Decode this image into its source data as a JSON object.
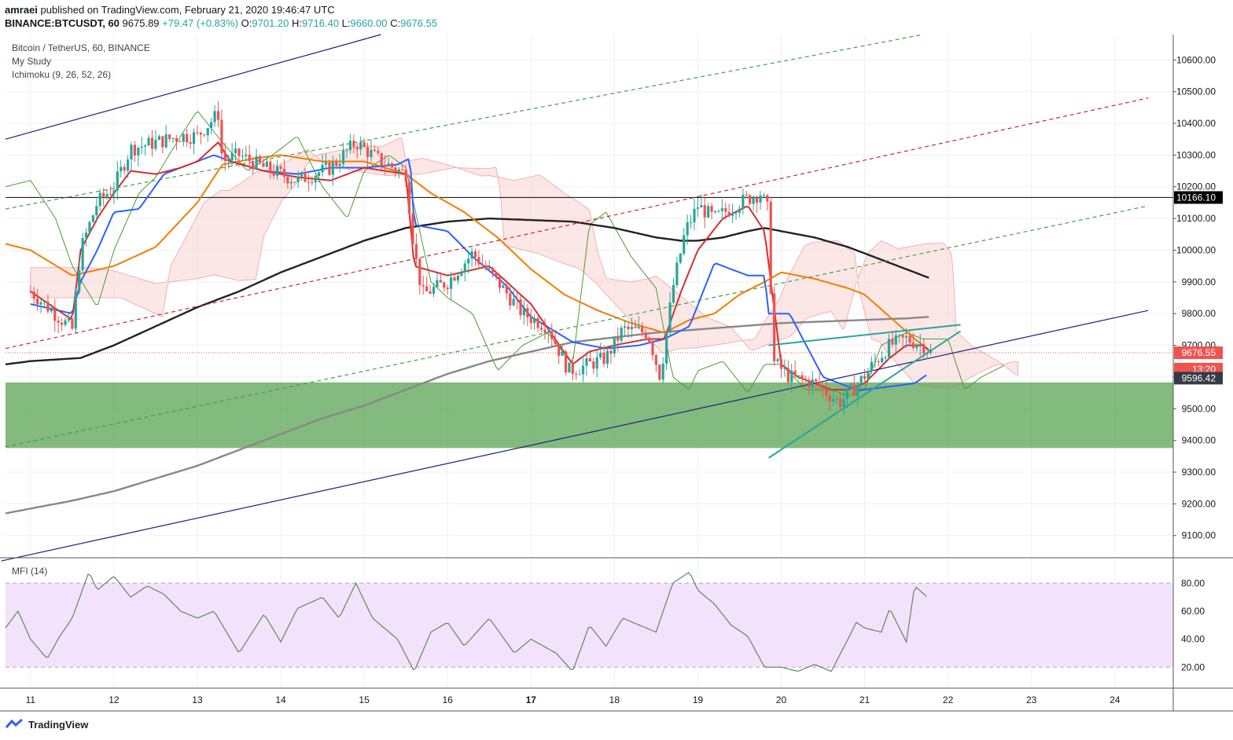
{
  "header": {
    "publisher": "amraei",
    "published_text": "published on TradingView.com, February 21, 2020 19:46:47 UTC",
    "symbol": "BINANCE:BTCUSDT, 60",
    "last": "9675.89",
    "change": "+79.47 (+0.83%)",
    "o_label": "O:",
    "o": "9701.20",
    "h_label": "H:",
    "h": "9716.40",
    "l_label": "L:",
    "l": "9660.00",
    "c_label": "C:",
    "c": "9676.55"
  },
  "legend": {
    "title": "Bitcoin / TetherUS, 60, BINANCE",
    "study1": "My Study",
    "study2": "Ichimoku (9, 26, 52, 26)"
  },
  "mfi_label": "MFI (14)",
  "footer": {
    "brand": "TradingView"
  },
  "colors": {
    "up": "#26a69a",
    "down": "#ef5350",
    "support_zone": "#5aa351",
    "tenkan": "#2962ff",
    "kijun": "#d32f2f",
    "lagging": "#4e9a2f",
    "ema50": "#f57c00",
    "sma100": "#222222",
    "sma200": "#888888",
    "channel": "#1a237e",
    "mfi_band": "#f3e2fb"
  },
  "chart_data": [
    {
      "type": "line",
      "title": "Bitcoin / TetherUS, 60, BINANCE",
      "x_ticks": [
        "11",
        "12",
        "13",
        "14",
        "15",
        "16",
        "17",
        "18",
        "19",
        "20",
        "21",
        "22",
        "23",
        "24"
      ],
      "ylim": [
        9030,
        10680
      ],
      "y_ticks": [
        "10600.00",
        "10500.00",
        "10400.00",
        "10300.00",
        "10200.00",
        "10100.00",
        "10000.00",
        "9900.00",
        "9800.00",
        "9700.00",
        "9600.00",
        "9500.00",
        "9400.00",
        "9300.00",
        "9200.00",
        "9100.00"
      ],
      "price_labels": [
        {
          "text": "10166.10",
          "value": 10166.1,
          "color": "#000000"
        },
        {
          "text": "9676.55",
          "value": 9676.55,
          "color": "#ef5350"
        },
        {
          "text": "13:20",
          "value": 9625,
          "color": "#ef5350"
        },
        {
          "text": "9596.42",
          "value": 9596.42,
          "color": "#363a45"
        }
      ],
      "horizontal_line": 10166.1,
      "support_zone": [
        9376,
        9583
      ],
      "series": [
        {
          "id": "price",
          "x": [
            11.0,
            11.5,
            11.6,
            11.8,
            12.0,
            12.2,
            12.5,
            12.8,
            13.0,
            13.25,
            13.3,
            13.5,
            13.8,
            14.2,
            14.6,
            14.9,
            15.2,
            15.5,
            15.6,
            15.7,
            16.0,
            16.3,
            16.6,
            16.9,
            17.2,
            17.45,
            17.6,
            17.9,
            18.1,
            18.4,
            18.55,
            18.7,
            18.85,
            19.0,
            19.2,
            19.5,
            19.75,
            19.85,
            19.9,
            20.1,
            20.4,
            20.7,
            20.9,
            21.1,
            21.3,
            21.5,
            21.7,
            21.8
          ],
          "y": [
            9870,
            9750,
            10000,
            10150,
            10200,
            10320,
            10340,
            10360,
            10360,
            10430,
            10280,
            10300,
            10260,
            10220,
            10260,
            10340,
            10280,
            10240,
            10000,
            9860,
            9900,
            9990,
            9900,
            9800,
            9760,
            9620,
            9630,
            9660,
            9750,
            9740,
            9600,
            9880,
            10060,
            10140,
            10100,
            10150,
            10180,
            10120,
            9650,
            9600,
            9580,
            9520,
            9570,
            9640,
            9700,
            9720,
            9700,
            9676.55
          ]
        },
        {
          "id": "tenkan",
          "x": [
            11.0,
            11.5,
            11.6,
            11.8,
            12.0,
            12.3,
            12.6,
            12.9,
            13.2,
            13.4,
            13.8,
            14.2,
            14.6,
            15.0,
            15.4,
            15.55,
            15.6,
            16.0,
            16.3,
            16.7,
            17.0,
            17.5,
            17.9,
            18.3,
            18.6,
            18.9,
            19.2,
            19.6,
            19.8,
            19.85,
            20.1,
            20.5,
            20.9,
            21.0,
            21.3,
            21.6,
            21.75
          ],
          "y": [
            9830,
            9800,
            9900,
            10000,
            10120,
            10130,
            10240,
            10270,
            10300,
            10280,
            10250,
            10240,
            10260,
            10260,
            10270,
            10290,
            10080,
            10060,
            9980,
            9890,
            9790,
            9710,
            9690,
            9700,
            9720,
            9760,
            9960,
            9920,
            9920,
            9800,
            9800,
            9600,
            9560,
            9560,
            9570,
            9580,
            9608
          ]
        },
        {
          "id": "kijun",
          "x": [
            11.0,
            11.5,
            11.6,
            11.8,
            12.0,
            12.2,
            12.5,
            12.8,
            13.0,
            13.25,
            13.4,
            13.8,
            14.2,
            14.6,
            15.0,
            15.5,
            15.6,
            16.0,
            16.5,
            17.0,
            17.5,
            17.7,
            18.0,
            18.4,
            18.6,
            18.8,
            19.0,
            19.3,
            19.6,
            19.8,
            20.0,
            20.2,
            20.6,
            20.8,
            21.0,
            21.3,
            21.5,
            21.7,
            21.8
          ],
          "y": [
            9870,
            9780,
            10000,
            10100,
            10180,
            10250,
            10240,
            10260,
            10280,
            10340,
            10280,
            10250,
            10230,
            10220,
            10260,
            10240,
            9950,
            9920,
            9950,
            9830,
            9640,
            9680,
            9700,
            9720,
            9720,
            9870,
            10000,
            10100,
            10140,
            10060,
            9640,
            9600,
            9560,
            9560,
            9580,
            9660,
            9700,
            9700,
            9676
          ]
        },
        {
          "id": "lagging",
          "x": [
            10.7,
            11.0,
            11.3,
            11.5,
            11.8,
            12.0,
            12.3,
            12.5,
            12.8,
            13.0,
            13.3,
            13.6,
            13.9,
            14.2,
            14.5,
            14.8,
            15.0,
            15.3,
            15.5,
            15.8,
            16.0,
            16.3,
            16.6,
            16.9,
            17.2,
            17.5,
            17.7,
            17.9,
            18.2,
            18.5,
            18.7,
            18.9,
            19.0,
            19.3,
            19.6,
            19.8,
            20.0,
            20.3,
            20.6,
            20.8,
            21.0,
            21.2,
            21.5,
            21.7,
            22.0,
            22.2,
            22.4,
            22.7
          ],
          "y": [
            10200,
            10220,
            10100,
            9950,
            9820,
            10000,
            10180,
            10230,
            10360,
            10440,
            10340,
            10250,
            10300,
            10360,
            10200,
            10100,
            10250,
            10300,
            10260,
            9900,
            9850,
            9800,
            9620,
            9700,
            9740,
            9640,
            10080,
            10120,
            9980,
            9880,
            9600,
            9560,
            9620,
            9650,
            9550,
            9640,
            9640,
            9560,
            9560,
            9540,
            9560,
            9700,
            9740,
            9720,
            9720,
            9560,
            9600,
            9640
          ]
        },
        {
          "id": "ema50",
          "x": [
            10.7,
            11.0,
            11.5,
            12.0,
            12.5,
            13.0,
            13.3,
            13.7,
            14.0,
            14.5,
            15.0,
            15.5,
            15.8,
            16.2,
            16.6,
            17.0,
            17.4,
            17.8,
            18.2,
            18.6,
            18.9,
            19.2,
            19.5,
            19.8,
            20.0,
            20.4,
            20.8,
            21.0,
            21.3,
            21.6,
            21.8
          ],
          "y": [
            10020,
            10000,
            9920,
            9950,
            10010,
            10150,
            10270,
            10290,
            10300,
            10280,
            10280,
            10240,
            10180,
            10120,
            10040,
            9940,
            9860,
            9810,
            9770,
            9740,
            9780,
            9800,
            9860,
            9900,
            9930,
            9910,
            9880,
            9860,
            9790,
            9720,
            9680
          ]
        },
        {
          "id": "sma100",
          "x": [
            10.7,
            11.0,
            11.6,
            12.0,
            12.5,
            13.0,
            13.5,
            14.0,
            14.5,
            15.0,
            15.5,
            16.0,
            16.5,
            17.0,
            17.5,
            18.0,
            18.5,
            18.8,
            19.0,
            19.3,
            19.6,
            19.8,
            20.0,
            20.4,
            20.8,
            21.0,
            21.4,
            21.8
          ],
          "y": [
            9640,
            9650,
            9660,
            9700,
            9760,
            9820,
            9870,
            9930,
            9980,
            10030,
            10070,
            10090,
            10100,
            10095,
            10090,
            10070,
            10040,
            10030,
            10030,
            10040,
            10060,
            10070,
            10060,
            10040,
            10010,
            9990,
            9950,
            9910
          ]
        },
        {
          "id": "sma200",
          "x": [
            10.7,
            11.5,
            12.0,
            12.5,
            13.0,
            13.5,
            14.0,
            14.5,
            15.0,
            15.5,
            16.0,
            16.5,
            17.0,
            17.5,
            18.0,
            18.5,
            19.0,
            19.5,
            20.0,
            20.5,
            21.0,
            21.5,
            21.8
          ],
          "y": [
            9170,
            9210,
            9240,
            9280,
            9320,
            9370,
            9420,
            9470,
            9510,
            9560,
            9610,
            9650,
            9680,
            9710,
            9725,
            9740,
            9750,
            9760,
            9770,
            9775,
            9780,
            9785,
            9790
          ]
        }
      ],
      "trend_lines": [
        {
          "id": "channel_top",
          "x": [
            10.7,
            15.2
          ],
          "y": [
            10350,
            10680
          ]
        },
        {
          "id": "channel_bottom",
          "x": [
            10.65,
            24.4
          ],
          "y": [
            9020,
            9810
          ]
        },
        {
          "id": "green_dash_upper",
          "x": [
            10.7,
            21.7
          ],
          "y": [
            10130,
            10680
          ]
        },
        {
          "id": "red_dash_mid",
          "x": [
            10.7,
            24.4
          ],
          "y": [
            9690,
            10480
          ]
        },
        {
          "id": "green_dash_lower",
          "x": [
            10.7,
            24.4
          ],
          "y": [
            9380,
            10140
          ]
        },
        {
          "id": "triangle_top",
          "x": [
            19.85,
            22.15
          ],
          "y": [
            9700,
            9765
          ]
        },
        {
          "id": "triangle_bottom",
          "x": [
            19.85,
            22.15
          ],
          "y": [
            9345,
            9745
          ]
        }
      ]
    },
    {
      "type": "line",
      "title": "MFI (14)",
      "ylim": [
        5,
        97
      ],
      "y_ticks": [
        "80.00",
        "60.00",
        "40.00",
        "20.00"
      ],
      "bands": [
        20,
        80
      ],
      "x_ticks": [
        "11",
        "12",
        "13",
        "14",
        "15",
        "16",
        "17",
        "18",
        "19",
        "20",
        "21",
        "22",
        "23",
        "24"
      ],
      "series": [
        {
          "id": "mfi",
          "x": [
            10.7,
            10.85,
            11.0,
            11.2,
            11.35,
            11.5,
            11.7,
            11.8,
            12.0,
            12.2,
            12.4,
            12.6,
            12.8,
            13.0,
            13.2,
            13.4,
            13.5,
            13.8,
            14.0,
            14.2,
            14.5,
            14.7,
            14.9,
            15.1,
            15.4,
            15.6,
            15.8,
            16.0,
            16.2,
            16.5,
            16.8,
            17.0,
            17.3,
            17.5,
            17.7,
            17.9,
            18.1,
            18.3,
            18.5,
            18.7,
            18.9,
            19.0,
            19.2,
            19.4,
            19.6,
            19.8,
            20.0,
            20.2,
            20.4,
            20.6,
            20.8,
            20.9,
            21.0,
            21.2,
            21.3,
            21.5,
            21.6,
            21.75
          ],
          "y": [
            48,
            60,
            40,
            26,
            42,
            55,
            88,
            75,
            85,
            70,
            78,
            72,
            60,
            55,
            60,
            40,
            30,
            58,
            38,
            62,
            70,
            55,
            80,
            55,
            40,
            17,
            45,
            52,
            35,
            55,
            30,
            40,
            30,
            17,
            50,
            35,
            55,
            50,
            45,
            80,
            88,
            75,
            65,
            50,
            42,
            20,
            20,
            17,
            22,
            17,
            40,
            52,
            48,
            45,
            62,
            38,
            78,
            70
          ]
        }
      ]
    }
  ]
}
